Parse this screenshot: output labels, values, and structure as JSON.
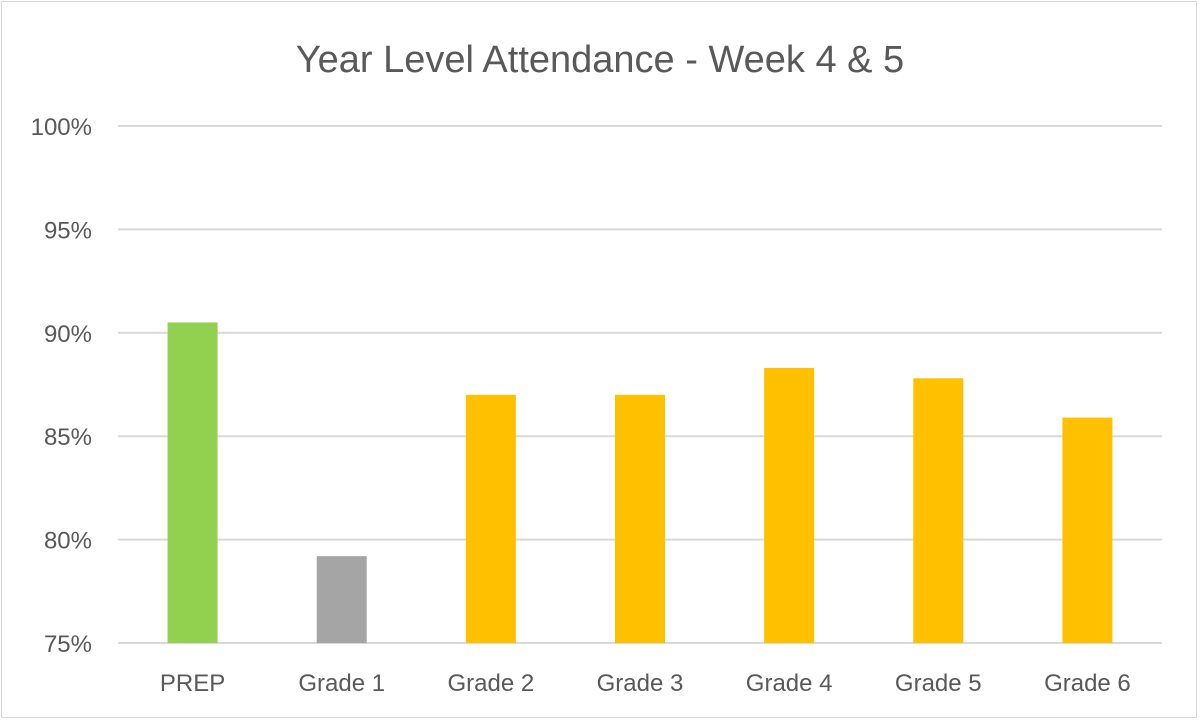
{
  "chart_data": {
    "type": "bar",
    "title": "Year Level Attendance - Week 4 & 5",
    "xlabel": "",
    "ylabel": "",
    "categories": [
      "PREP",
      "Grade 1",
      "Grade 2",
      "Grade 3",
      "Grade 4",
      "Grade 5",
      "Grade 6"
    ],
    "values": [
      90.5,
      79.2,
      87.0,
      87.0,
      88.3,
      87.8,
      85.9
    ],
    "ylim": [
      75,
      100
    ],
    "yticks": [
      75,
      80,
      85,
      90,
      95,
      100
    ],
    "ytick_labels": [
      "75%",
      "80%",
      "85%",
      "90%",
      "95%",
      "100%"
    ],
    "grid": true,
    "legend": "none",
    "bar_colors": [
      "#92d050",
      "#a5a5a5",
      "#ffc000",
      "#ffc000",
      "#ffc000",
      "#ffc000",
      "#ffc000"
    ]
  }
}
